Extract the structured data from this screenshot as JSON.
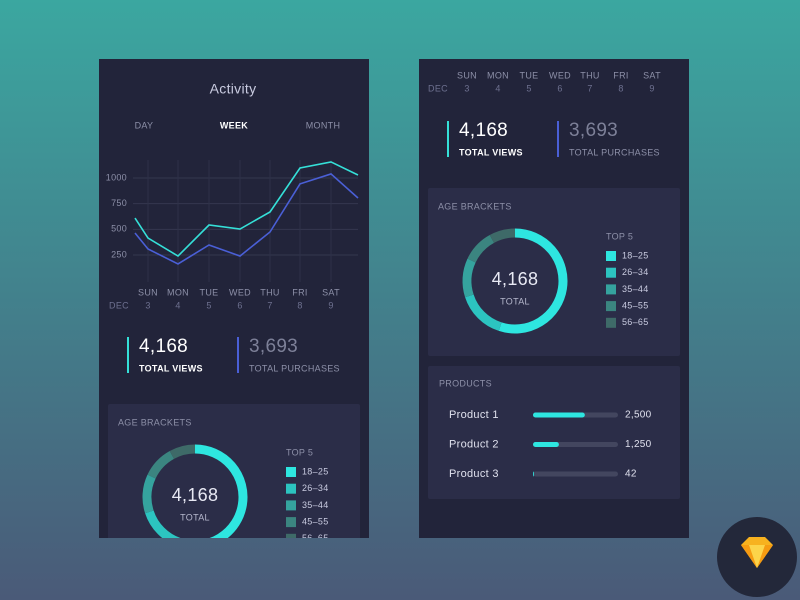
{
  "title": "Activity",
  "tabs": [
    "DAY",
    "WEEK",
    "MONTH"
  ],
  "active_tab": 1,
  "chart_data": {
    "type": "line",
    "month": "DEC",
    "categories": [
      null,
      "SUN",
      "MON",
      "TUE",
      "WED",
      "THU",
      "FRI",
      "SAT",
      null
    ],
    "dates": [
      null,
      3,
      4,
      5,
      6,
      7,
      8,
      9,
      null
    ],
    "ylim": [
      0,
      1170
    ],
    "yticks": [
      250,
      500,
      750,
      1000
    ],
    "grid": true,
    "series": [
      {
        "color": "#35e0d8",
        "values": [
          610,
          415,
          240,
          542,
          503,
          669,
          1097,
          1156,
          1029
        ]
      },
      {
        "color": "#4a5fd6",
        "values": [
          464,
          309,
          163,
          348,
          240,
          474,
          942,
          1039,
          805
        ]
      }
    ]
  },
  "stats": [
    {
      "value": "4,168",
      "label": "TOTAL VIEWS",
      "color": "#35e0d8"
    },
    {
      "value": "3,693",
      "label": "TOTAL PURCHASES",
      "color": "#4a5fd6"
    }
  ],
  "age_brackets": {
    "type": "pie",
    "title": "AGE BRACKETS",
    "total": "4,168",
    "total_label": "TOTAL",
    "legend_title": "TOP 5",
    "categories": [
      "18–25",
      "26–34",
      "35–44",
      "45–55",
      "56–65"
    ],
    "values": [
      55,
      15,
      12,
      10,
      8
    ],
    "colors": [
      "#2ee6e0",
      "#2cc4c0",
      "#35a39e",
      "#3b8580",
      "#3e6a68"
    ]
  },
  "products": {
    "type": "bar",
    "title": "PRODUCTS",
    "categories": [
      "Product 1",
      "Product 2",
      "Product 3"
    ],
    "values": [
      2500,
      1250,
      42
    ],
    "value_labels": [
      "2,500",
      "1,250",
      "42"
    ],
    "xlim": [
      0,
      4100
    ],
    "color": "#2ee6e0"
  }
}
